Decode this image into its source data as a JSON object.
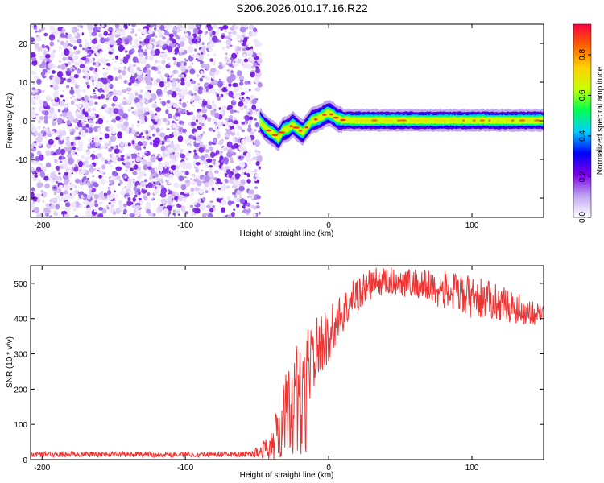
{
  "figure": {
    "title": "S206.2026.010.17.16.R22"
  },
  "chart_data": [
    {
      "type": "heatmap",
      "title": "",
      "xlabel": "Height of straight line (km)",
      "ylabel": "Frequency (Hz)",
      "xlim": [
        -208,
        150
      ],
      "ylim": [
        -25,
        25
      ],
      "x_ticks": [
        -200,
        -100,
        0,
        100
      ],
      "y_ticks": [
        -20,
        -10,
        0,
        10,
        20
      ],
      "noise_region_x": [
        -208,
        -48
      ],
      "signal_track": {
        "x": [
          -48,
          -45,
          -42,
          -38,
          -35,
          -32,
          -28,
          -25,
          -22,
          -18,
          -15,
          -12,
          -8,
          -5,
          -2,
          0,
          3,
          6,
          10,
          20,
          40,
          60,
          80,
          100,
          120,
          150
        ],
        "y": [
          0.0,
          -1.5,
          -2.5,
          -3.5,
          -4.5,
          -2.5,
          -2.0,
          -1.0,
          -2.0,
          -3.0,
          -1.5,
          0.0,
          0.5,
          1.0,
          1.8,
          2.0,
          1.5,
          0.5,
          0.2,
          0.1,
          0.1,
          0.1,
          0.1,
          0.1,
          0.1,
          0.1
        ]
      },
      "colorbar": {
        "label": "Normalized spectral amplitude",
        "range": [
          0.0,
          0.95
        ],
        "ticks": [
          0.0,
          0.2,
          0.4,
          0.6,
          0.8
        ],
        "tick_labels": [
          "0.0",
          "0.2",
          "0.4",
          "0.6",
          "0.8"
        ],
        "colors": [
          "#ffffff",
          "#c0a6f2",
          "#7a00e6",
          "#0000ff",
          "#00d0ff",
          "#00ff50",
          "#c8ff00",
          "#ffd000",
          "#ff6000",
          "#ff0040"
        ]
      }
    },
    {
      "type": "line",
      "title": "",
      "xlabel": "Height of straight line (km)",
      "ylabel": "SNR (10 * v/v)",
      "xlim": [
        -208,
        150
      ],
      "ylim": [
        0,
        550
      ],
      "x_ticks": [
        -200,
        -100,
        0,
        100
      ],
      "y_ticks": [
        0,
        100,
        200,
        300,
        400,
        500
      ],
      "line_color": "#ee3333",
      "series": [
        {
          "name": "SNR",
          "envelope_x": [
            -208,
            -60,
            -50,
            -40,
            -30,
            -25,
            -20,
            -15,
            -10,
            -5,
            0,
            5,
            10,
            20,
            30,
            40,
            50,
            60,
            70,
            80,
            90,
            100,
            110,
            120,
            130,
            140,
            150
          ],
          "envelope_mean": [
            15,
            15,
            20,
            40,
            120,
            180,
            220,
            260,
            300,
            330,
            350,
            390,
            420,
            470,
            500,
            505,
            505,
            500,
            490,
            480,
            470,
            460,
            455,
            445,
            430,
            420,
            410
          ],
          "envelope_spread": [
            8,
            8,
            15,
            40,
            120,
            130,
            120,
            110,
            100,
            90,
            80,
            70,
            60,
            55,
            45,
            40,
            40,
            45,
            50,
            55,
            60,
            60,
            55,
            50,
            45,
            40,
            30
          ]
        }
      ]
    }
  ]
}
